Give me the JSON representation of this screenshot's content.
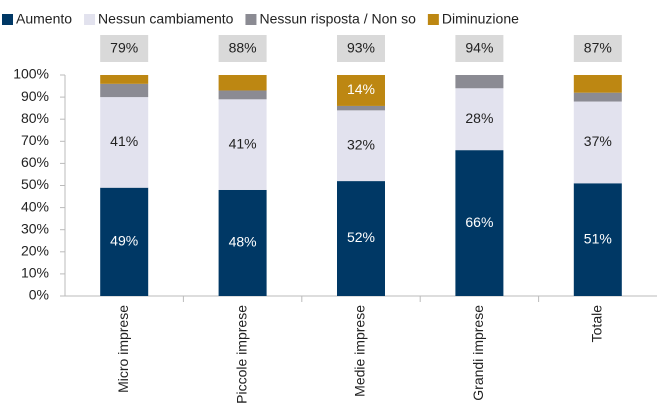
{
  "chart_data": {
    "type": "stacked_bar",
    "categories": [
      "Micro imprese",
      "Piccole imprese",
      "Medie imprese",
      "Grandi imprese",
      "Totale"
    ],
    "series": [
      {
        "name": "Aumento",
        "color": "#003865",
        "values": [
          49,
          48,
          52,
          66,
          51
        ],
        "value_labels": [
          "49%",
          "48%",
          "52%",
          "66%",
          "51%"
        ]
      },
      {
        "name": "Nessun cambiamento",
        "color": "#e2e2ee",
        "values": [
          41,
          41,
          32,
          28,
          37
        ],
        "value_labels": [
          "41%",
          "41%",
          "32%",
          "28%",
          "37%"
        ]
      },
      {
        "name": "Nessun risposta / Non so",
        "color": "#8b8b93",
        "values": [
          6,
          4,
          2,
          6,
          4
        ],
        "value_labels": [
          null,
          null,
          null,
          null,
          null
        ]
      },
      {
        "name": "Diminuzione",
        "color": "#bd8712",
        "values": [
          4,
          7,
          14,
          0,
          8
        ],
        "value_labels": [
          null,
          null,
          "14%",
          null,
          null
        ]
      }
    ],
    "annotations": [
      "79%",
      "88%",
      "93%",
      "94%",
      "87%"
    ],
    "ylim": [
      0,
      100
    ],
    "yticks": [
      {
        "value": 0,
        "label": "0%"
      },
      {
        "value": 10,
        "label": "10%"
      },
      {
        "value": 20,
        "label": "20%"
      },
      {
        "value": 30,
        "label": "30%"
      },
      {
        "value": 40,
        "label": "40%"
      },
      {
        "value": 50,
        "label": "50%"
      },
      {
        "value": 60,
        "label": "60%"
      },
      {
        "value": 70,
        "label": "70%"
      },
      {
        "value": 80,
        "label": "80%"
      },
      {
        "value": 90,
        "label": "90%"
      },
      {
        "value": 100,
        "label": "100%"
      }
    ],
    "legend": "top"
  }
}
